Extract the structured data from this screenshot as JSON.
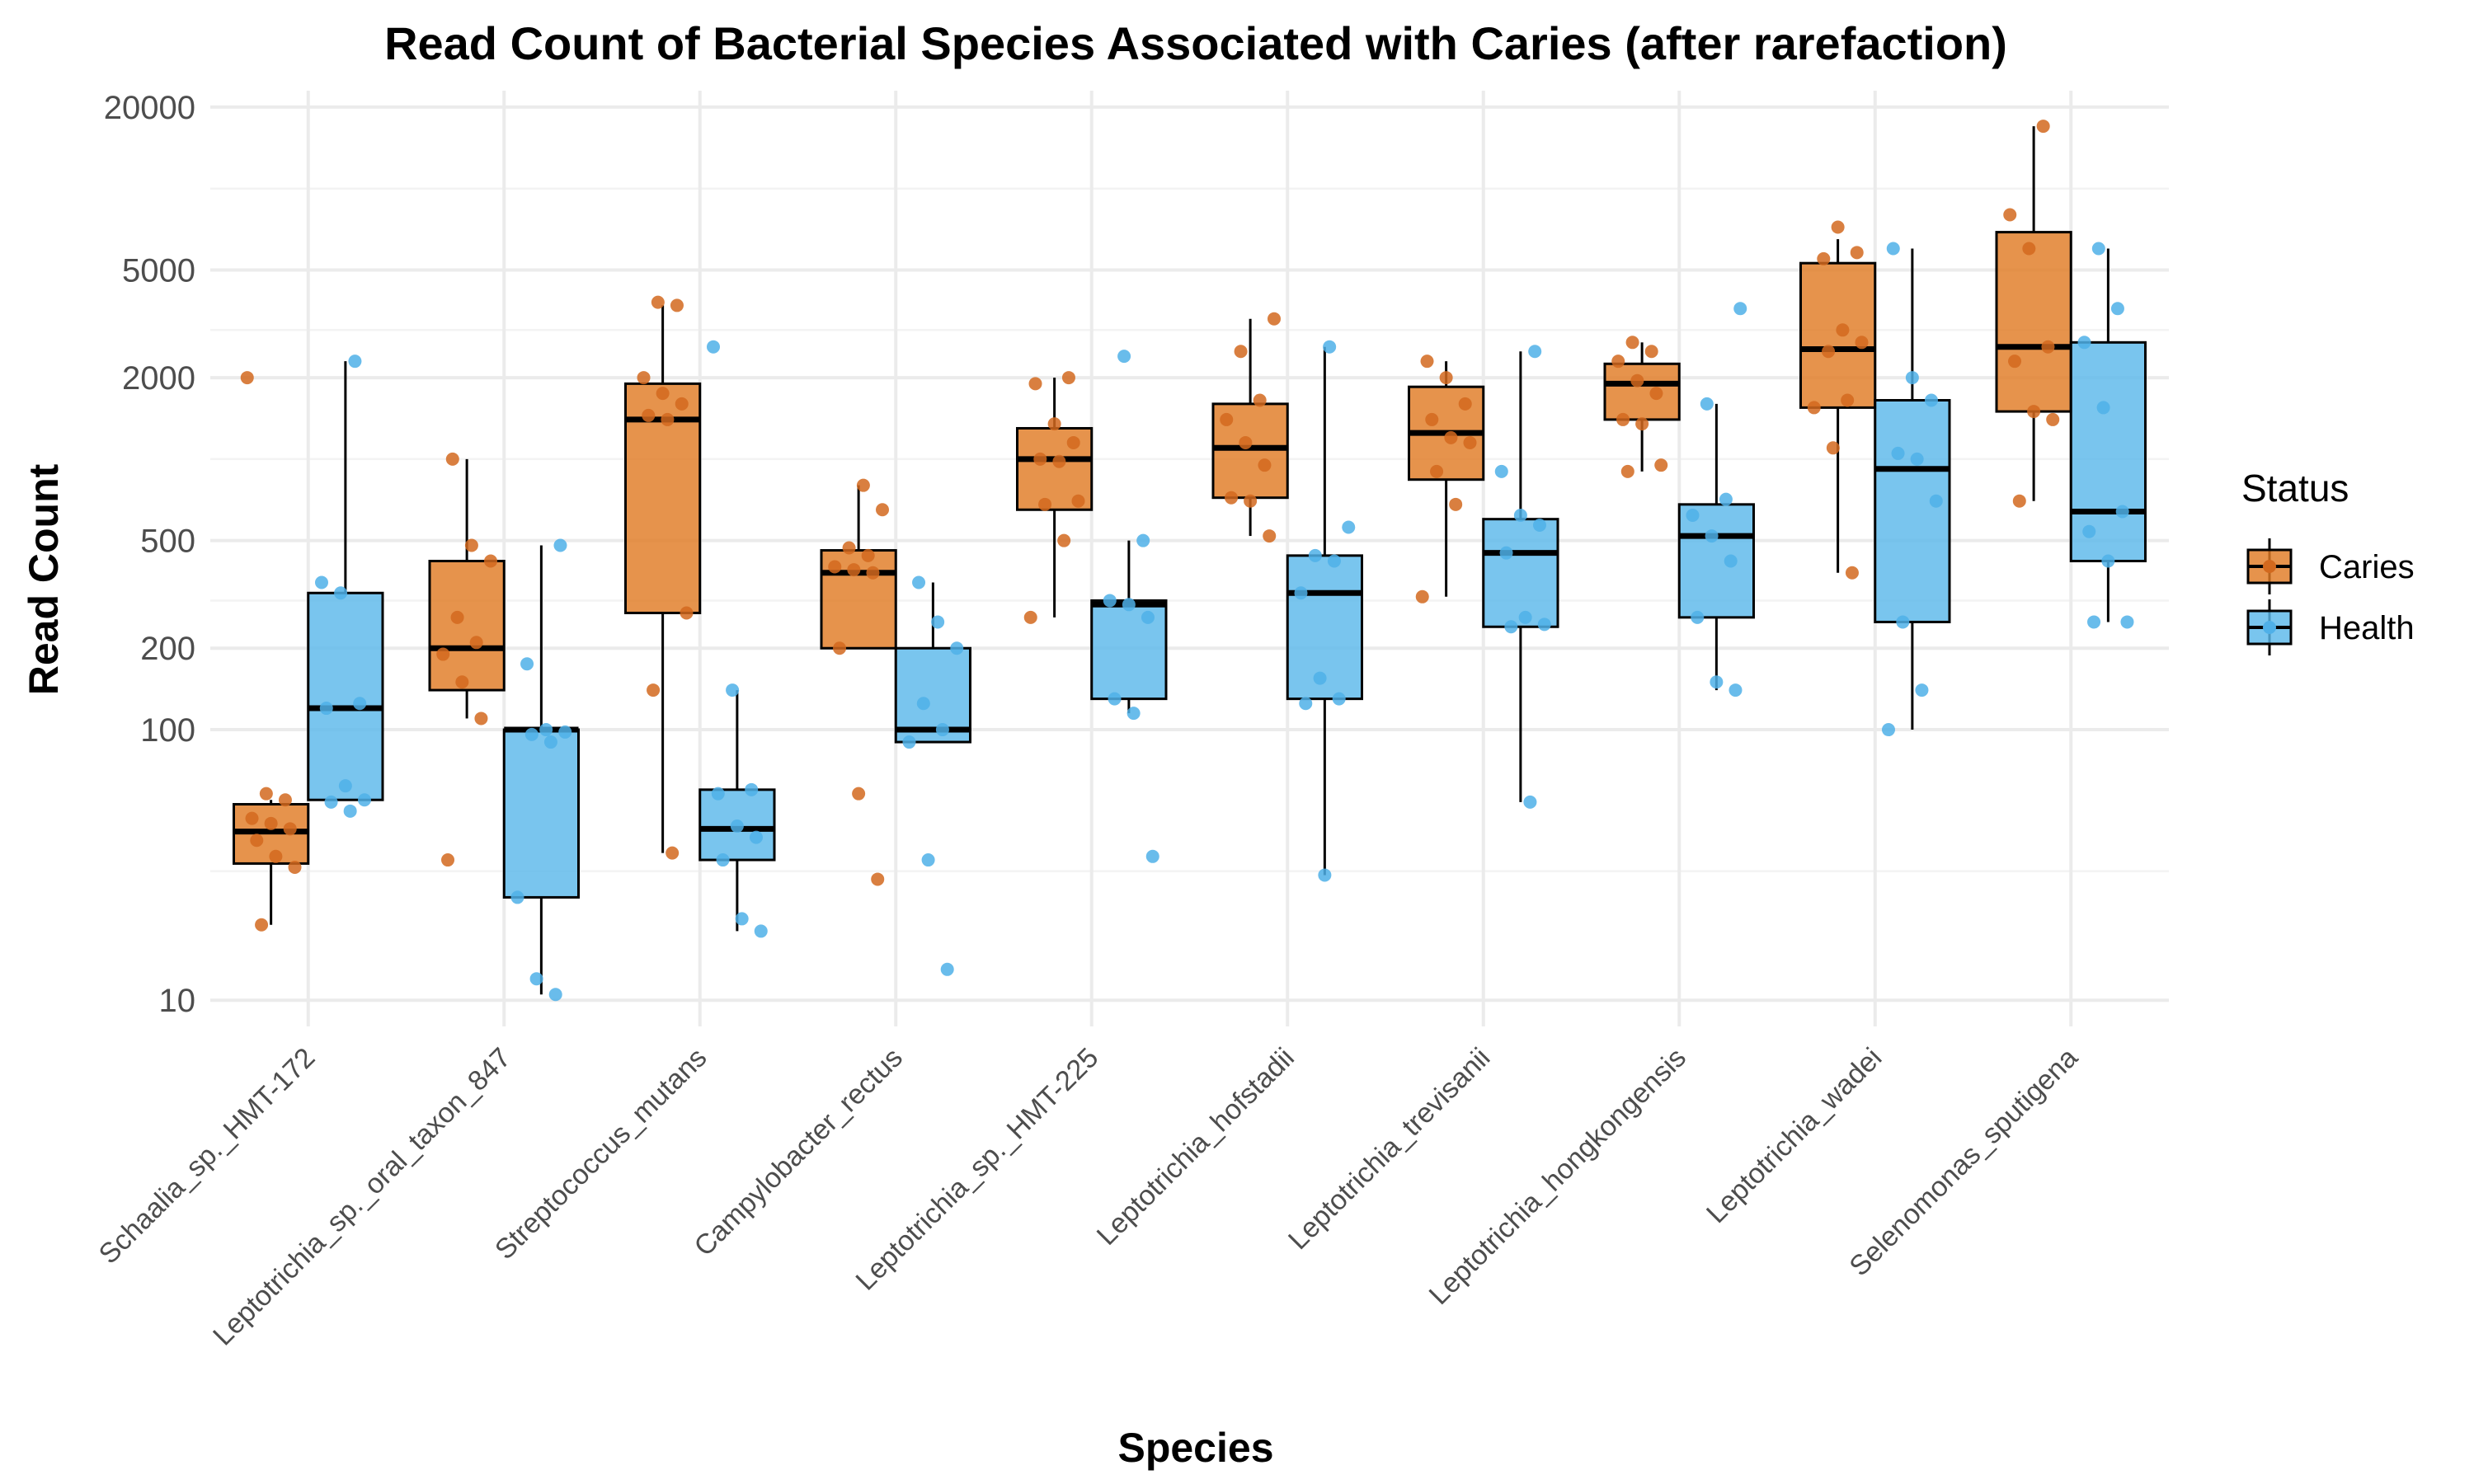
{
  "chart_data": {
    "type": "box",
    "title": "Read Count of Bacterial Species Associated with Caries (after rarefaction)",
    "xlabel": "Species",
    "ylabel": "Read Count",
    "y_scale": "log10",
    "ylim": [
      8,
      23000
    ],
    "y_ticks": [
      10,
      100,
      200,
      500,
      2000,
      5000,
      20000
    ],
    "y_minor_ticks": [
      30,
      300,
      1000,
      3000,
      10000
    ],
    "grid": true,
    "legend": {
      "title": "Status",
      "placement": "right",
      "entries": [
        "Caries",
        "Health"
      ]
    },
    "colors": {
      "Caries": "#E07B25",
      "Health": "#5BB8EA",
      "Caries_point": "#D2691E",
      "Health_point": "#4FB0E8"
    },
    "categories": [
      "Schaalia_sp._HMT-172",
      "Leptotrichia_sp._oral_taxon_847",
      "Streptococcus_mutans",
      "Campylobacter_rectus",
      "Leptotrichia_sp._HMT-225",
      "Leptotrichia_hofstadii",
      "Leptotrichia_trevisanii",
      "Leptotrichia_hongkongensis",
      "Leptotrichia_wadei",
      "Selenomonas_sputigena"
    ],
    "series": [
      {
        "name": "Caries",
        "boxes": [
          {
            "lower_whisker": 19,
            "q1": 32,
            "median": 42,
            "q3": 53,
            "upper_whisker": 55
          },
          {
            "lower_whisker": 110,
            "q1": 140,
            "median": 200,
            "q3": 420,
            "upper_whisker": 1000
          },
          {
            "lower_whisker": 35,
            "q1": 270,
            "median": 1400,
            "q3": 1900,
            "upper_whisker": 3700
          },
          {
            "lower_whisker": 200,
            "q1": 200,
            "median": 380,
            "q3": 460,
            "upper_whisker": 800
          },
          {
            "lower_whisker": 260,
            "q1": 650,
            "median": 1000,
            "q3": 1300,
            "upper_whisker": 2000
          },
          {
            "lower_whisker": 520,
            "q1": 720,
            "median": 1100,
            "q3": 1600,
            "upper_whisker": 3300
          },
          {
            "lower_whisker": 310,
            "q1": 840,
            "median": 1250,
            "q3": 1850,
            "upper_whisker": 2300
          },
          {
            "lower_whisker": 900,
            "q1": 1400,
            "median": 1900,
            "q3": 2250,
            "upper_whisker": 2700
          },
          {
            "lower_whisker": 380,
            "q1": 1550,
            "median": 2550,
            "q3": 5300,
            "upper_whisker": 6500
          },
          {
            "lower_whisker": 700,
            "q1": 1500,
            "median": 2600,
            "q3": 6900,
            "upper_whisker": 17000
          }
        ],
        "points": [
          [
            2000,
            58,
            55,
            47,
            45,
            43,
            39,
            34,
            31,
            19
          ],
          [
            1000,
            480,
            420,
            260,
            210,
            190,
            150,
            110,
            33
          ],
          [
            3800,
            3700,
            2000,
            1750,
            1600,
            1450,
            1400,
            270,
            140,
            35
          ],
          [
            800,
            650,
            470,
            440,
            400,
            390,
            380,
            200,
            58,
            28
          ],
          [
            2000,
            1900,
            1350,
            1150,
            1000,
            980,
            700,
            680,
            500,
            260
          ],
          [
            3300,
            2500,
            1650,
            1400,
            1150,
            950,
            720,
            700,
            520
          ],
          [
            2300,
            2000,
            1600,
            1400,
            1200,
            1150,
            900,
            680,
            310
          ],
          [
            2700,
            2500,
            2300,
            1950,
            1750,
            1400,
            1350,
            950,
            900
          ],
          [
            7200,
            5800,
            5500,
            3000,
            2700,
            2500,
            1650,
            1550,
            1100,
            380
          ],
          [
            17000,
            8000,
            6000,
            2600,
            2300,
            1500,
            1400,
            700
          ]
        ]
      },
      {
        "name": "Health",
        "boxes": [
          {
            "lower_whisker": 55,
            "q1": 55,
            "median": 120,
            "q3": 320,
            "upper_whisker": 2300
          },
          {
            "lower_whisker": 10.5,
            "q1": 24,
            "median": 100,
            "q3": 100,
            "upper_whisker": 480
          },
          {
            "lower_whisker": 18,
            "q1": 33,
            "median": 43,
            "q3": 60,
            "upper_whisker": 140
          },
          {
            "lower_whisker": 90,
            "q1": 90,
            "median": 100,
            "q3": 200,
            "upper_whisker": 350
          },
          {
            "lower_whisker": 115,
            "q1": 130,
            "median": 290,
            "q3": 300,
            "upper_whisker": 500
          },
          {
            "lower_whisker": 29,
            "q1": 130,
            "median": 320,
            "q3": 440,
            "upper_whisker": 2600
          },
          {
            "lower_whisker": 54,
            "q1": 240,
            "median": 450,
            "q3": 600,
            "upper_whisker": 2500
          },
          {
            "lower_whisker": 140,
            "q1": 260,
            "median": 520,
            "q3": 680,
            "upper_whisker": 1600
          },
          {
            "lower_whisker": 100,
            "q1": 250,
            "median": 920,
            "q3": 1650,
            "upper_whisker": 6000
          },
          {
            "lower_whisker": 250,
            "q1": 420,
            "median": 640,
            "q3": 2700,
            "upper_whisker": 6000
          }
        ],
        "points": [
          [
            2300,
            350,
            320,
            125,
            120,
            62,
            55,
            54,
            50
          ],
          [
            480,
            175,
            100,
            98,
            96,
            90,
            24,
            12,
            10.5
          ],
          [
            2600,
            140,
            60,
            58,
            44,
            40,
            33,
            20,
            18
          ],
          [
            350,
            250,
            200,
            125,
            100,
            90,
            33,
            13
          ],
          [
            2400,
            500,
            300,
            290,
            260,
            130,
            115,
            34
          ],
          [
            2600,
            560,
            440,
            420,
            320,
            155,
            130,
            125,
            29
          ],
          [
            2500,
            900,
            620,
            570,
            450,
            260,
            245,
            240,
            54
          ],
          [
            3600,
            1600,
            710,
            620,
            520,
            420,
            260,
            150,
            140
          ],
          [
            6000,
            2000,
            1650,
            1050,
            1000,
            700,
            250,
            140,
            100
          ],
          [
            6000,
            3600,
            2700,
            1550,
            640,
            540,
            420,
            250,
            250
          ]
        ]
      }
    ]
  }
}
